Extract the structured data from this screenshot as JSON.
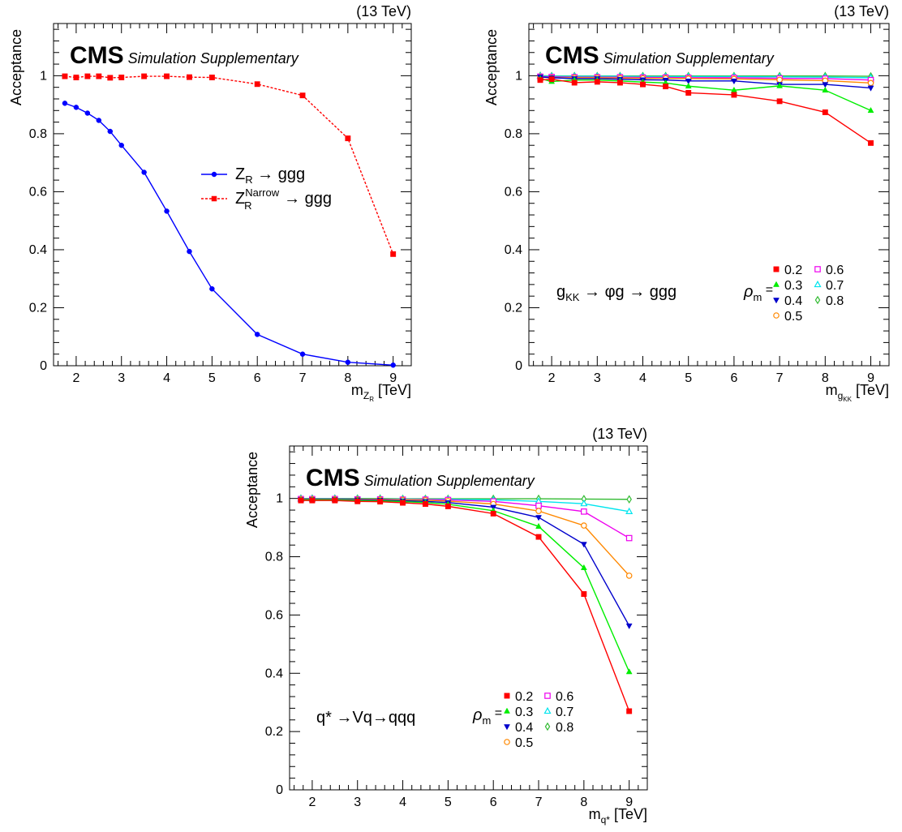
{
  "panels": [
    {
      "energy": "(13 TeV)",
      "cms": "CMS",
      "subtitle": "Simulation Supplementary",
      "ylabel": "Acceptance",
      "xlabel_main": "m",
      "xlabel_sub": "Z",
      "xlabel_subsub": "R",
      "xlabel_unit": "[TeV]",
      "legend": [
        {
          "base": "Z",
          "sub": "R",
          "sup": "",
          "suffix": " → ggg"
        },
        {
          "base": "Z",
          "sub": "R",
          "sup": "Narrow",
          "suffix": " → ggg"
        }
      ]
    },
    {
      "energy": "(13 TeV)",
      "cms": "CMS",
      "subtitle": "Simulation Supplementary",
      "ylabel": "Acceptance",
      "xlabel_main": "m",
      "xlabel_sub": "g",
      "xlabel_subsub": "KK",
      "xlabel_unit": "[TeV]",
      "process": {
        "pre": "g",
        "pre_sub": "KK",
        "post": " → φg → ggg"
      },
      "rho_label": {
        "base": "ρ",
        "sub": "m",
        "eq": " ="
      },
      "legend": [
        "0.2",
        "0.3",
        "0.4",
        "0.5",
        "0.6",
        "0.7",
        "0.8"
      ]
    },
    {
      "energy": "(13 TeV)",
      "cms": "CMS",
      "subtitle": "Simulation Supplementary",
      "ylabel": "Acceptance",
      "xlabel_main": "m",
      "xlabel_sub": "q*",
      "xlabel_subsub": "",
      "xlabel_unit": "[TeV]",
      "process": {
        "pre": "q* →Vq→qqq",
        "pre_sub": "",
        "post": ""
      },
      "rho_label": {
        "base": "ρ",
        "sub": "m",
        "eq": " ="
      },
      "legend": [
        "0.2",
        "0.3",
        "0.4",
        "0.5",
        "0.6",
        "0.7",
        "0.8"
      ]
    }
  ],
  "chart_data": [
    {
      "type": "line",
      "xlabel": "m_{Z_R} [TeV]",
      "ylabel": "Acceptance",
      "xlim": [
        1.5,
        9.4
      ],
      "ylim": [
        0,
        1.18
      ],
      "xticks": [
        2,
        3,
        4,
        5,
        6,
        7,
        8,
        9
      ],
      "yticks": [
        0,
        0.2,
        0.4,
        0.6,
        0.8,
        1
      ],
      "legend_position": "center-right",
      "series": [
        {
          "name": "Z_R → ggg",
          "color": "#0000ff",
          "marker": "circle",
          "dash": false,
          "x": [
            1.75,
            2.0,
            2.25,
            2.5,
            2.75,
            3.0,
            3.5,
            4.0,
            4.5,
            5.0,
            6.0,
            7.0,
            8.0,
            9.0
          ],
          "y": [
            0.905,
            0.891,
            0.871,
            0.846,
            0.808,
            0.76,
            0.667,
            0.533,
            0.394,
            0.265,
            0.108,
            0.04,
            0.012,
            0.002
          ]
        },
        {
          "name": "Z_R^Narrow → ggg",
          "color": "#ff0000",
          "marker": "square",
          "dash": true,
          "x": [
            1.75,
            2.0,
            2.25,
            2.5,
            2.75,
            3.0,
            3.5,
            4.0,
            4.5,
            5.0,
            6.0,
            7.0,
            8.0,
            9.0
          ],
          "y": [
            0.998,
            0.994,
            0.998,
            0.998,
            0.993,
            0.994,
            0.998,
            0.998,
            0.995,
            0.994,
            0.971,
            0.932,
            0.784,
            0.385
          ]
        }
      ]
    },
    {
      "type": "line",
      "xlabel": "m_{g_KK} [TeV]",
      "ylabel": "Acceptance",
      "xlim": [
        1.5,
        9.4
      ],
      "ylim": [
        0,
        1.18
      ],
      "xticks": [
        2,
        3,
        4,
        5,
        6,
        7,
        8,
        9
      ],
      "yticks": [
        0,
        0.2,
        0.4,
        0.6,
        0.8,
        1
      ],
      "legend_position": "bottom-right",
      "series": [
        {
          "name": "0.2",
          "color": "#ff0000",
          "marker": "square",
          "x": [
            1.75,
            2.0,
            2.5,
            3.0,
            3.5,
            4.0,
            4.5,
            5.0,
            6.0,
            7.0,
            8.0,
            9.0
          ],
          "y": [
            0.985,
            0.988,
            0.976,
            0.979,
            0.976,
            0.97,
            0.963,
            0.941,
            0.934,
            0.912,
            0.874,
            0.768
          ]
        },
        {
          "name": "0.3",
          "color": "#00ee00",
          "marker": "triangle-up",
          "x": [
            1.75,
            2.0,
            2.5,
            3.0,
            3.5,
            4.0,
            4.5,
            5.0,
            6.0,
            7.0,
            8.0,
            9.0
          ],
          "y": [
            0.99,
            0.98,
            0.985,
            0.985,
            0.982,
            0.978,
            0.975,
            0.964,
            0.95,
            0.965,
            0.95,
            0.88
          ]
        },
        {
          "name": "0.4",
          "color": "#0000cc",
          "marker": "triangle-down",
          "x": [
            1.75,
            2.0,
            2.5,
            3.0,
            3.5,
            4.0,
            4.5,
            5.0,
            6.0,
            7.0,
            8.0,
            9.0
          ],
          "y": [
            0.996,
            0.993,
            0.99,
            0.99,
            0.988,
            0.986,
            0.985,
            0.982,
            0.982,
            0.97,
            0.97,
            0.958
          ]
        },
        {
          "name": "0.5",
          "color": "#ff8800",
          "marker": "circle-open",
          "x": [
            1.75,
            2.0,
            2.5,
            3.0,
            3.5,
            4.0,
            4.5,
            5.0,
            6.0,
            7.0,
            8.0,
            9.0
          ],
          "y": [
            0.995,
            0.993,
            0.993,
            0.993,
            0.992,
            0.991,
            0.991,
            0.99,
            0.989,
            0.986,
            0.983,
            0.975
          ]
        },
        {
          "name": "0.6",
          "color": "#ee00ee",
          "marker": "square-open",
          "x": [
            1.75,
            2.0,
            2.5,
            3.0,
            3.5,
            4.0,
            4.5,
            5.0,
            6.0,
            7.0,
            8.0,
            9.0
          ],
          "y": [
            0.997,
            0.996,
            0.995,
            0.995,
            0.995,
            0.994,
            0.994,
            0.993,
            0.993,
            0.991,
            0.99,
            0.985
          ]
        },
        {
          "name": "0.7",
          "color": "#00e5ee",
          "marker": "triangle-up-open",
          "x": [
            1.75,
            2.0,
            2.5,
            3.0,
            3.5,
            4.0,
            4.5,
            5.0,
            6.0,
            7.0,
            8.0,
            9.0
          ],
          "y": [
            0.999,
            0.998,
            0.998,
            0.998,
            0.998,
            0.997,
            0.997,
            0.997,
            0.997,
            0.996,
            0.995,
            0.993
          ]
        },
        {
          "name": "0.8",
          "color": "#33bb33",
          "marker": "diamond-open",
          "x": [
            1.75,
            2.0,
            2.5,
            3.0,
            3.5,
            4.0,
            4.5,
            5.0,
            6.0,
            7.0,
            8.0,
            9.0
          ],
          "y": [
            1.0,
            0.999,
            0.999,
            0.999,
            0.999,
            0.999,
            0.999,
            0.999,
            0.999,
            0.999,
            0.999,
            0.998
          ]
        }
      ]
    },
    {
      "type": "line",
      "xlabel": "m_{q*} [TeV]",
      "ylabel": "Acceptance",
      "xlim": [
        1.5,
        9.4
      ],
      "ylim": [
        0,
        1.18
      ],
      "xticks": [
        2,
        3,
        4,
        5,
        6,
        7,
        8,
        9
      ],
      "yticks": [
        0,
        0.2,
        0.4,
        0.6,
        0.8,
        1
      ],
      "legend_position": "bottom-center",
      "series": [
        {
          "name": "0.2",
          "color": "#ff0000",
          "marker": "square",
          "x": [
            1.75,
            2.0,
            2.5,
            3.0,
            3.5,
            4.0,
            4.5,
            5.0,
            6.0,
            7.0,
            8.0,
            9.0
          ],
          "y": [
            0.993,
            0.993,
            0.993,
            0.99,
            0.989,
            0.985,
            0.981,
            0.973,
            0.948,
            0.868,
            0.672,
            0.27
          ]
        },
        {
          "name": "0.3",
          "color": "#00ee00",
          "marker": "triangle-up",
          "x": [
            1.75,
            2.0,
            2.5,
            3.0,
            3.5,
            4.0,
            4.5,
            5.0,
            6.0,
            7.0,
            8.0,
            9.0
          ],
          "y": [
            0.995,
            0.995,
            0.995,
            0.993,
            0.992,
            0.989,
            0.986,
            0.98,
            0.958,
            0.904,
            0.762,
            0.405
          ]
        },
        {
          "name": "0.4",
          "color": "#0000cc",
          "marker": "triangle-down",
          "x": [
            1.75,
            2.0,
            2.5,
            3.0,
            3.5,
            4.0,
            4.5,
            5.0,
            6.0,
            7.0,
            8.0,
            9.0
          ],
          "y": [
            0.996,
            0.996,
            0.996,
            0.995,
            0.994,
            0.992,
            0.99,
            0.986,
            0.97,
            0.935,
            0.843,
            0.563
          ]
        },
        {
          "name": "0.5",
          "color": "#ff8800",
          "marker": "circle-open",
          "x": [
            1.75,
            2.0,
            2.5,
            3.0,
            3.5,
            4.0,
            4.5,
            5.0,
            6.0,
            7.0,
            8.0,
            9.0
          ],
          "y": [
            0.997,
            0.997,
            0.997,
            0.996,
            0.996,
            0.995,
            0.994,
            0.991,
            0.981,
            0.957,
            0.907,
            0.735
          ]
        },
        {
          "name": "0.6",
          "color": "#ee00ee",
          "marker": "square-open",
          "x": [
            1.75,
            2.0,
            2.5,
            3.0,
            3.5,
            4.0,
            4.5,
            5.0,
            6.0,
            7.0,
            8.0,
            9.0
          ],
          "y": [
            0.998,
            0.998,
            0.998,
            0.997,
            0.997,
            0.996,
            0.996,
            0.995,
            0.99,
            0.975,
            0.955,
            0.864
          ]
        },
        {
          "name": "0.7",
          "color": "#00e5ee",
          "marker": "triangle-up-open",
          "x": [
            1.75,
            2.0,
            2.5,
            3.0,
            3.5,
            4.0,
            4.5,
            5.0,
            6.0,
            7.0,
            8.0,
            9.0
          ],
          "y": [
            0.999,
            0.999,
            0.999,
            0.998,
            0.998,
            0.998,
            0.997,
            0.997,
            0.995,
            0.99,
            0.982,
            0.955
          ]
        },
        {
          "name": "0.8",
          "color": "#33bb33",
          "marker": "diamond-open",
          "x": [
            1.75,
            2.0,
            2.5,
            3.0,
            3.5,
            4.0,
            4.5,
            5.0,
            6.0,
            7.0,
            8.0,
            9.0
          ],
          "y": [
            1.0,
            1.0,
            1.0,
            1.0,
            1.0,
            0.999,
            0.999,
            0.999,
            0.999,
            0.999,
            0.998,
            0.997
          ]
        }
      ]
    }
  ]
}
